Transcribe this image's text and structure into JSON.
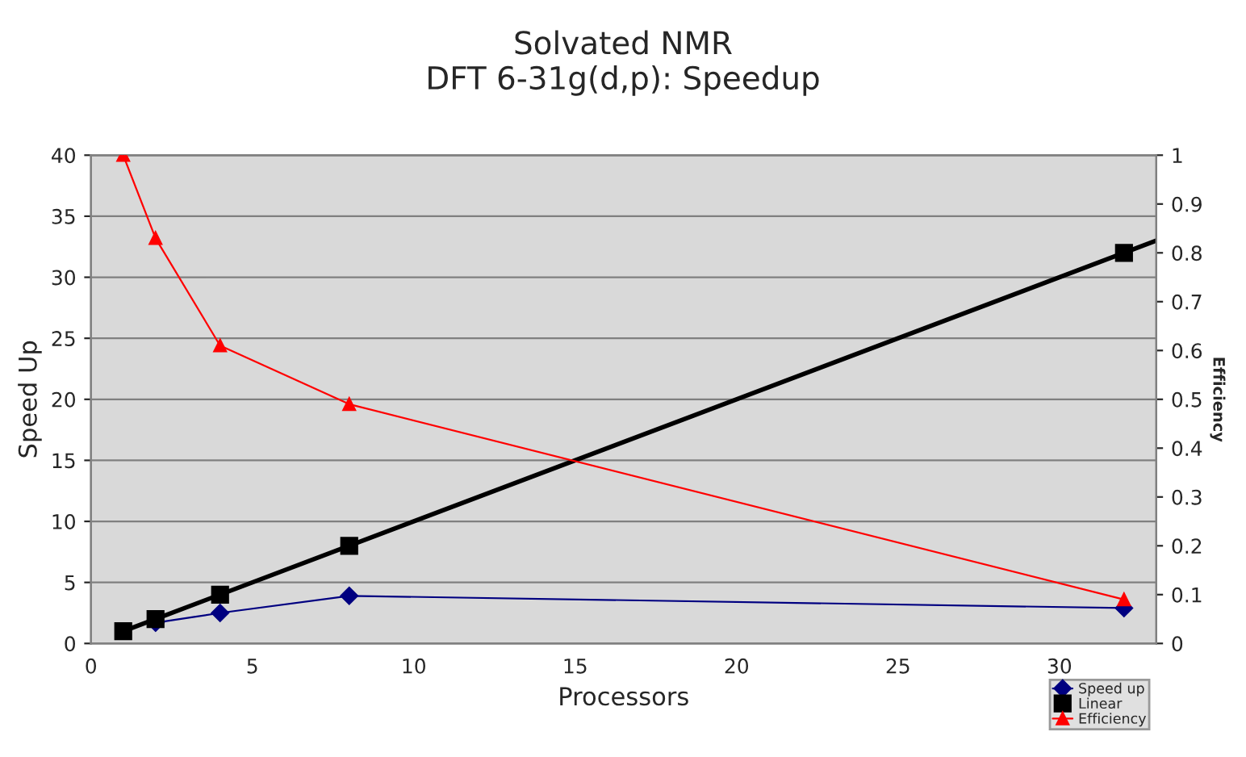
{
  "chart_data": {
    "type": "line",
    "title": "Solvated NMR\nDFT 6-31g(d,p): Speedup",
    "xlabel": "Processors",
    "ylabel": "Speed Up",
    "y2label": "Efficiency",
    "x": [
      1,
      2,
      4,
      8,
      32
    ],
    "series": [
      {
        "name": "Speed up",
        "color": "#000080",
        "values": [
          null,
          1.7,
          2.5,
          3.9,
          2.9
        ],
        "marker": "diamond"
      },
      {
        "name": "Linear",
        "type": "scatter",
        "color": "#000000",
        "values": [
          1,
          2,
          4,
          8,
          32
        ],
        "marker": "square"
      },
      {
        "type": "line",
        "color": "#000000",
        "x": [
          1,
          33
        ],
        "values": [
          1,
          33
        ],
        "marker": "none"
      },
      {
        "name": "Efficiency",
        "color": "#ff0000",
        "values": [
          1,
          0.83,
          0.61,
          0.49,
          0.09
        ],
        "marker": "triangle",
        "axis": "y2"
      }
    ],
    "xlim": [
      0,
      33
    ],
    "xticks": [
      0,
      5,
      10,
      15,
      20,
      25,
      30
    ],
    "ylim": [
      0,
      40
    ],
    "yticks": [
      0,
      5,
      10,
      15,
      20,
      25,
      30,
      35,
      40
    ],
    "y2lim": [
      0,
      1
    ],
    "y2ticks": [
      0,
      0.1,
      0.2,
      0.3,
      0.4,
      0.5,
      0.6,
      0.7,
      0.8,
      0.9,
      1
    ],
    "grid": "y",
    "legend": "bottom right"
  }
}
